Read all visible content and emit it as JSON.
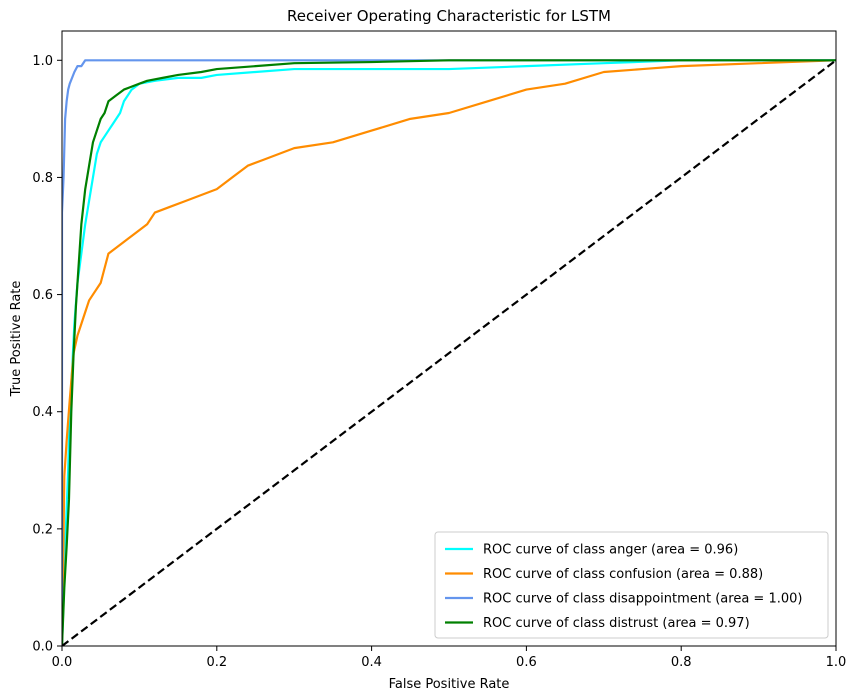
{
  "chart_data": {
    "type": "line",
    "title": "Receiver Operating Characteristic for LSTM",
    "xlabel": "False Positive Rate",
    "ylabel": "True Positive Rate",
    "xlim": [
      0.0,
      1.0
    ],
    "ylim": [
      0.0,
      1.05
    ],
    "xticks": [
      "0.0",
      "0.2",
      "0.4",
      "0.6",
      "0.8",
      "1.0"
    ],
    "yticks": [
      "0.0",
      "0.2",
      "0.4",
      "0.6",
      "0.8",
      "1.0"
    ],
    "grid": false,
    "legend_position": "lower-right",
    "series": [
      {
        "name": "ROC curve of class anger (area = 0.96)",
        "color": "#00FFFF",
        "x": [
          0.0,
          0.005,
          0.008,
          0.01,
          0.013,
          0.016,
          0.02,
          0.025,
          0.03,
          0.035,
          0.04,
          0.045,
          0.05,
          0.055,
          0.06,
          0.065,
          0.07,
          0.075,
          0.08,
          0.09,
          0.1,
          0.12,
          0.15,
          0.18,
          0.2,
          0.25,
          0.3,
          0.37,
          0.4,
          0.5,
          0.6,
          0.7,
          0.8,
          1.0
        ],
        "y": [
          0.0,
          0.2,
          0.3,
          0.4,
          0.47,
          0.55,
          0.62,
          0.67,
          0.72,
          0.76,
          0.8,
          0.84,
          0.86,
          0.87,
          0.88,
          0.89,
          0.9,
          0.91,
          0.93,
          0.95,
          0.96,
          0.965,
          0.97,
          0.97,
          0.975,
          0.98,
          0.985,
          0.985,
          0.985,
          0.985,
          0.99,
          0.995,
          1.0,
          1.0
        ]
      },
      {
        "name": "ROC curve of class confusion (area = 0.88)",
        "color": "#FF8C00",
        "x": [
          0.0,
          0.003,
          0.006,
          0.01,
          0.015,
          0.02,
          0.025,
          0.03,
          0.035,
          0.04,
          0.05,
          0.06,
          0.07,
          0.08,
          0.09,
          0.1,
          0.11,
          0.12,
          0.14,
          0.16,
          0.18,
          0.2,
          0.22,
          0.24,
          0.26,
          0.28,
          0.3,
          0.35,
          0.4,
          0.45,
          0.5,
          0.55,
          0.6,
          0.65,
          0.7,
          0.75,
          0.8,
          0.9,
          1.0
        ],
        "y": [
          0.0,
          0.29,
          0.35,
          0.42,
          0.5,
          0.53,
          0.55,
          0.57,
          0.59,
          0.6,
          0.62,
          0.67,
          0.68,
          0.69,
          0.7,
          0.71,
          0.72,
          0.74,
          0.75,
          0.76,
          0.77,
          0.78,
          0.8,
          0.82,
          0.83,
          0.84,
          0.85,
          0.86,
          0.88,
          0.9,
          0.91,
          0.93,
          0.95,
          0.96,
          0.98,
          0.985,
          0.99,
          0.995,
          1.0
        ]
      },
      {
        "name": "ROC curve of class disappointment (area = 1.00)",
        "color": "#6495ED",
        "x": [
          0.0,
          0.0,
          0.002,
          0.004,
          0.006,
          0.008,
          0.01,
          0.013,
          0.016,
          0.02,
          0.025,
          0.03,
          1.0
        ],
        "y": [
          0.0,
          0.74,
          0.8,
          0.9,
          0.93,
          0.95,
          0.96,
          0.97,
          0.98,
          0.99,
          0.99,
          1.0,
          1.0
        ]
      },
      {
        "name": "ROC curve of class distrust (area = 0.97)",
        "color": "#008000",
        "x": [
          0.0,
          0.003,
          0.006,
          0.009,
          0.012,
          0.015,
          0.018,
          0.02,
          0.025,
          0.03,
          0.035,
          0.04,
          0.045,
          0.05,
          0.055,
          0.06,
          0.07,
          0.08,
          0.09,
          0.1,
          0.11,
          0.13,
          0.15,
          0.18,
          0.2,
          0.25,
          0.3,
          0.4,
          0.5,
          0.6,
          1.0
        ],
        "y": [
          0.0,
          0.1,
          0.17,
          0.25,
          0.4,
          0.5,
          0.58,
          0.62,
          0.72,
          0.78,
          0.82,
          0.86,
          0.88,
          0.9,
          0.91,
          0.93,
          0.94,
          0.95,
          0.955,
          0.96,
          0.965,
          0.97,
          0.975,
          0.98,
          0.985,
          0.99,
          0.995,
          0.997,
          1.0,
          1.0,
          1.0
        ]
      },
      {
        "name": "",
        "color": "#000000",
        "dashed": true,
        "x": [
          0.0,
          1.0
        ],
        "y": [
          0.0,
          1.0
        ]
      }
    ]
  }
}
